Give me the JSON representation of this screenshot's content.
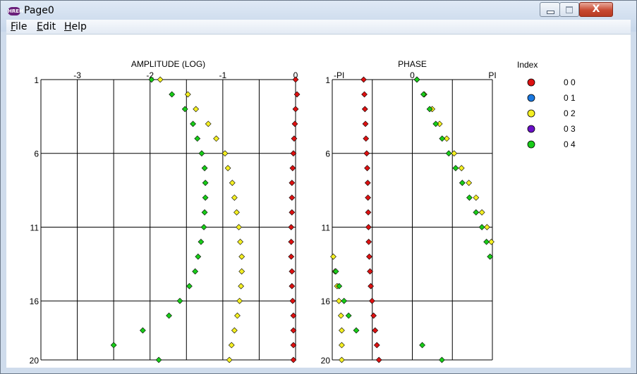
{
  "window": {
    "title": "Page0",
    "icon": "app-logo-icon",
    "icon_text": "HREH",
    "buttons": [
      "minimize-icon",
      "maximize-icon",
      "close-icon"
    ],
    "close_glyph": "X"
  },
  "menu": {
    "items": [
      {
        "label": "File",
        "accel": "F",
        "rest": "ile"
      },
      {
        "label": "Edit",
        "accel": "E",
        "rest": "dit"
      },
      {
        "label": "Help",
        "accel": "H",
        "rest": "elp"
      }
    ]
  },
  "colors": {
    "background": "#ffffff",
    "grid": "#000000",
    "series": [
      "#dd1111",
      "#1a78e0",
      "#f4ef22",
      "#6a10c8",
      "#18cc18"
    ],
    "marker_outline": "#000000"
  },
  "legend": {
    "title": "Index",
    "entries": [
      "0 0",
      "0 1",
      "0 2",
      "0 3",
      "0 4"
    ],
    "placement": "right"
  },
  "chart_data": [
    {
      "type": "scatter",
      "title": "AMPLITUDE (LOG)",
      "xlim": [
        -3.5,
        0
      ],
      "ylim": [
        1,
        20
      ],
      "x_ticks": [
        {
          "value": -3,
          "label": "-3"
        },
        {
          "value": -2,
          "label": "-2"
        },
        {
          "value": -1,
          "label": "-1"
        },
        {
          "value": 0,
          "label": "0"
        }
      ],
      "x_gridlines": [
        -3.5,
        -3,
        -2.5,
        -2,
        -1.5,
        -1,
        -0.5,
        0
      ],
      "y_ticks": [
        {
          "value": 1,
          "label": "1"
        },
        {
          "value": 6,
          "label": "6"
        },
        {
          "value": 11,
          "label": "11"
        },
        {
          "value": 16,
          "label": "16"
        },
        {
          "value": 20,
          "label": "20"
        }
      ],
      "grid": true,
      "series": [
        {
          "name": "0 0",
          "x": [
            0,
            0.02,
            0,
            -0.01,
            -0.02,
            -0.03,
            -0.04,
            -0.05,
            -0.05,
            -0.05,
            -0.06,
            -0.06,
            -0.06,
            -0.05,
            -0.05,
            -0.04,
            -0.03,
            -0.03,
            -0.03,
            -0.03
          ]
        },
        {
          "name": "0 2",
          "x": [
            -1.86,
            -1.48,
            -1.37,
            -1.2,
            -1.09,
            -0.97,
            -0.93,
            -0.87,
            -0.84,
            -0.81,
            -0.78,
            -0.76,
            -0.74,
            -0.74,
            -0.75,
            -0.77,
            -0.8,
            -0.84,
            -0.88,
            -0.91
          ]
        },
        {
          "name": "0 4",
          "x": [
            -1.98,
            -1.7,
            -1.52,
            -1.41,
            -1.35,
            -1.29,
            -1.25,
            -1.24,
            -1.24,
            -1.25,
            -1.26,
            -1.3,
            -1.34,
            -1.38,
            -1.46,
            -1.59,
            -1.74,
            -2.1,
            -2.5,
            -1.88
          ]
        }
      ]
    },
    {
      "type": "scatter",
      "title": "PHASE",
      "xlim": [
        -3.1416,
        3.1416
      ],
      "ylim": [
        1,
        20
      ],
      "x_ticks": [
        {
          "value": -3.1416,
          "label": "-PI"
        },
        {
          "value": 0,
          "label": "0"
        },
        {
          "value": 3.1416,
          "label": "PI"
        }
      ],
      "x_gridlines": [
        -3.1416,
        -1.5708,
        0,
        1.5708,
        3.1416
      ],
      "y_ticks": [
        {
          "value": 1,
          "label": "1"
        },
        {
          "value": 6,
          "label": "6"
        },
        {
          "value": 11,
          "label": "11"
        },
        {
          "value": 16,
          "label": "16"
        },
        {
          "value": 20,
          "label": "20"
        }
      ],
      "grid": true,
      "series": [
        {
          "name": "0 0",
          "x": [
            -1.91,
            -1.88,
            -1.86,
            -1.84,
            -1.82,
            -1.79,
            -1.77,
            -1.75,
            -1.74,
            -1.73,
            -1.72,
            -1.71,
            -1.69,
            -1.66,
            -1.63,
            -1.58,
            -1.52,
            -1.46,
            -1.39,
            -1.31
          ]
        },
        {
          "name": "0 2",
          "x": [
            0.18,
            0.47,
            0.78,
            1.07,
            1.35,
            1.64,
            1.93,
            2.22,
            2.5,
            2.73,
            2.93,
            3.1,
            -3.1,
            -3.03,
            -2.95,
            -2.88,
            -2.8,
            -2.77,
            -2.77,
            -2.77
          ]
        },
        {
          "name": "0 4",
          "x": [
            0.18,
            0.44,
            0.68,
            0.92,
            1.17,
            1.43,
            1.7,
            1.96,
            2.24,
            2.5,
            2.73,
            2.91,
            3.05,
            -3.0,
            -2.87,
            -2.68,
            -2.5,
            -2.2,
            0.39,
            1.16
          ]
        }
      ]
    }
  ]
}
